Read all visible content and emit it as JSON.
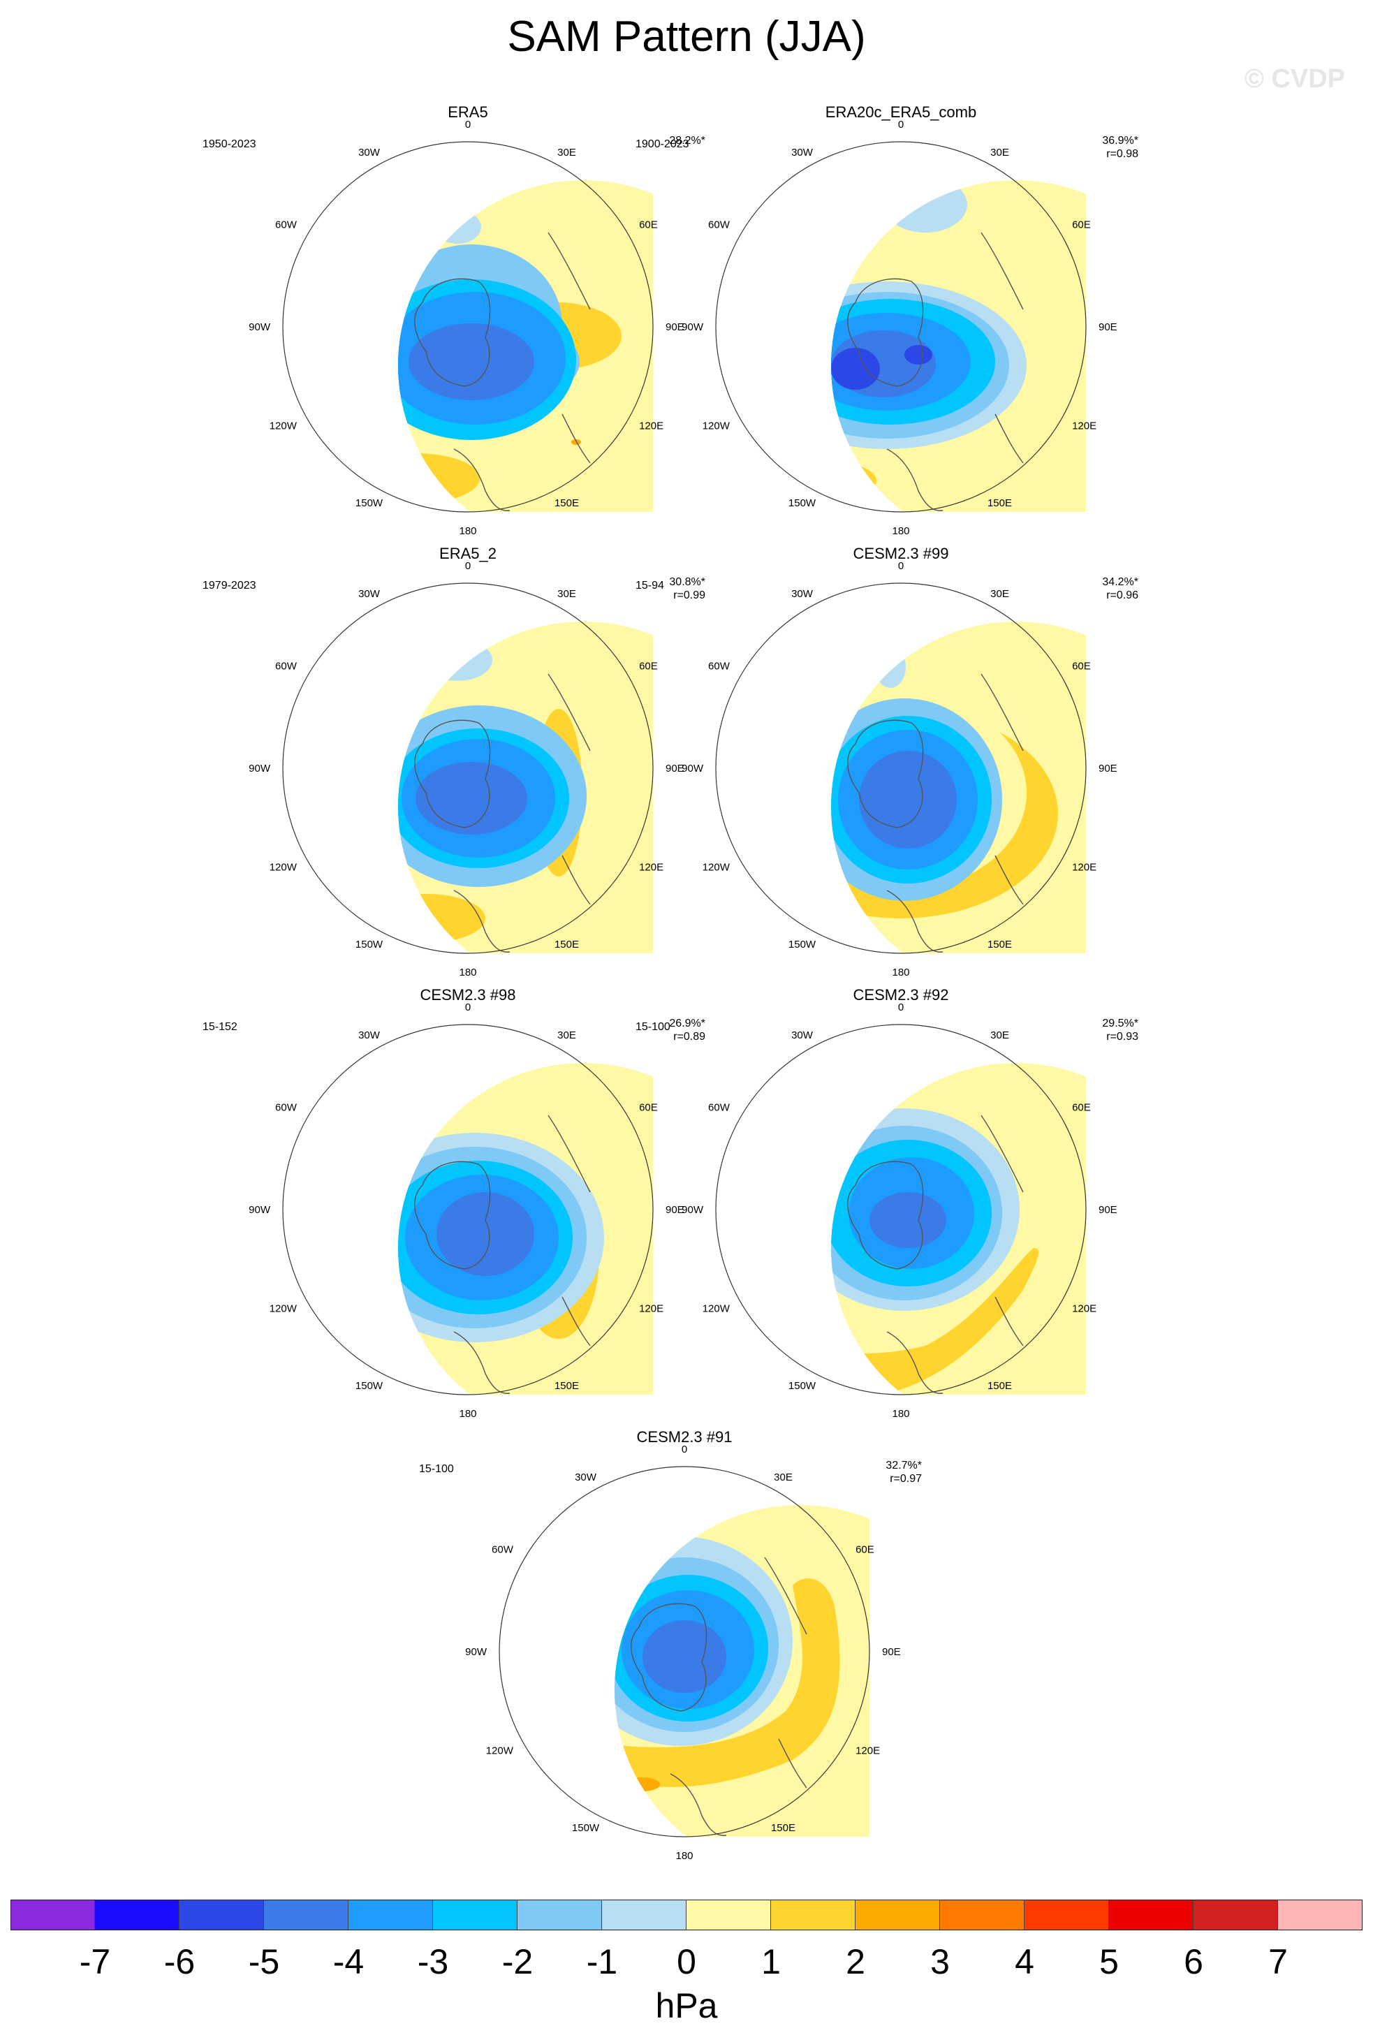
{
  "title": "SAM Pattern (JJA)",
  "watermark": "© CVDP",
  "lon_labels": {
    "n0": "0",
    "e30": "30E",
    "e60": "60E",
    "e90": "90E",
    "e120": "120E",
    "e150": "150E",
    "s180": "180",
    "w150": "150W",
    "w120": "120W",
    "w90": "90W",
    "w60": "60W",
    "w30": "30W"
  },
  "chart_data": {
    "type": "heatmap",
    "description_units": "hPa",
    "panels": [
      {
        "name": "ERA5",
        "years": "1950-2023",
        "pct": "28.2%*",
        "r": ""
      },
      {
        "name": "ERA20c_ERA5_comb",
        "years": "1900-2023",
        "pct": "36.9%*",
        "r": "r=0.98"
      },
      {
        "name": "ERA5_2",
        "years": "1979-2023",
        "pct": "30.8%*",
        "r": "r=0.99"
      },
      {
        "name": "CESM2.3 #99",
        "years": "15-94",
        "pct": "34.2%*",
        "r": "r=0.96"
      },
      {
        "name": "CESM2.3 #98",
        "years": "15-152",
        "pct": "26.9%*",
        "r": "r=0.89"
      },
      {
        "name": "CESM2.3 #92",
        "years": "15-100",
        "pct": "29.5%*",
        "r": "r=0.93"
      },
      {
        "name": "CESM2.3 #91",
        "years": "15-100",
        "pct": "32.7%*",
        "r": "r=0.97"
      }
    ],
    "colorbar": {
      "unit": "hPa",
      "labels": [
        "-7",
        "-6",
        "-5",
        "-4",
        "-3",
        "-2",
        "-1",
        "0",
        "1",
        "2",
        "3",
        "4",
        "5",
        "6",
        "7"
      ],
      "colors": [
        "#8a2be2",
        "#1a0dff",
        "#2b47e6",
        "#3a7be8",
        "#1e9bff",
        "#00c5ff",
        "#7ec9f5",
        "#b7def3",
        "#fff9a6",
        "#ffd42e",
        "#ffaa00",
        "#ff7a00",
        "#ff3a00",
        "#ee0000",
        "#d42020",
        "#ffb5b5"
      ]
    }
  }
}
